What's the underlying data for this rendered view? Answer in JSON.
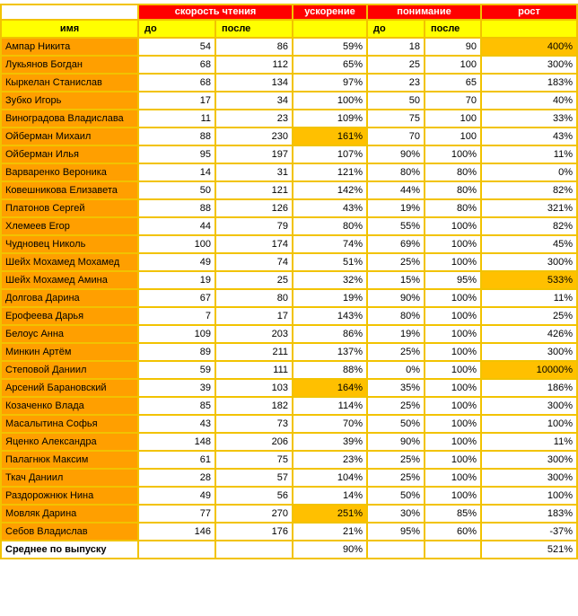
{
  "headers": {
    "reading_speed": "скорость чтения",
    "acceleration": "ускорение",
    "comprehension": "понимание",
    "growth": "рост",
    "name": "имя",
    "before": "до",
    "after": "после"
  },
  "rows": [
    {
      "name": "Ампар Никита",
      "speed_before": "54",
      "speed_after": "86",
      "acceleration": "59%",
      "comp_before": "18",
      "comp_after": "90",
      "growth": "400%",
      "hl_growth": true
    },
    {
      "name": "Лукьянов Богдан",
      "speed_before": "68",
      "speed_after": "112",
      "acceleration": "65%",
      "comp_before": "25",
      "comp_after": "100",
      "growth": "300%"
    },
    {
      "name": "Кыркелан Станислав",
      "speed_before": "68",
      "speed_after": "134",
      "acceleration": "97%",
      "comp_before": "23",
      "comp_after": "65",
      "growth": "183%"
    },
    {
      "name": "Зубко Игорь",
      "speed_before": "17",
      "speed_after": "34",
      "acceleration": "100%",
      "comp_before": "50",
      "comp_after": "70",
      "growth": "40%"
    },
    {
      "name": "Виноградова Владислава",
      "speed_before": "11",
      "speed_after": "23",
      "acceleration": "109%",
      "comp_before": "75",
      "comp_after": "100",
      "growth": "33%"
    },
    {
      "name": "Ойберман Михаил",
      "speed_before": "88",
      "speed_after": "230",
      "acceleration": "161%",
      "comp_before": "70",
      "comp_after": "100",
      "growth": "43%",
      "hl_accel": true
    },
    {
      "name": "Ойберман Илья",
      "speed_before": "95",
      "speed_after": "197",
      "acceleration": "107%",
      "comp_before": "90%",
      "comp_after": "100%",
      "growth": "11%"
    },
    {
      "name": "Варваренко Вероника",
      "speed_before": "14",
      "speed_after": "31",
      "acceleration": "121%",
      "comp_before": "80%",
      "comp_after": "80%",
      "growth": "0%"
    },
    {
      "name": "Ковешникова Елизавета",
      "speed_before": "50",
      "speed_after": "121",
      "acceleration": "142%",
      "comp_before": "44%",
      "comp_after": "80%",
      "growth": "82%"
    },
    {
      "name": "Платонов Сергей",
      "speed_before": "88",
      "speed_after": "126",
      "acceleration": "43%",
      "comp_before": "19%",
      "comp_after": "80%",
      "growth": "321%"
    },
    {
      "name": "Хлемеев Егор",
      "speed_before": "44",
      "speed_after": "79",
      "acceleration": "80%",
      "comp_before": "55%",
      "comp_after": "100%",
      "growth": "82%"
    },
    {
      "name": "Чудновец Николь",
      "speed_before": "100",
      "speed_after": "174",
      "acceleration": "74%",
      "comp_before": "69%",
      "comp_after": "100%",
      "growth": "45%"
    },
    {
      "name": "Шейх Мохамед Мохамед",
      "speed_before": "49",
      "speed_after": "74",
      "acceleration": "51%",
      "comp_before": "25%",
      "comp_after": "100%",
      "growth": "300%"
    },
    {
      "name": "Шейх Мохамед Амина",
      "speed_before": "19",
      "speed_after": "25",
      "acceleration": "32%",
      "comp_before": "15%",
      "comp_after": "95%",
      "growth": "533%",
      "hl_growth": true
    },
    {
      "name": "Долгова Дарина",
      "speed_before": "67",
      "speed_after": "80",
      "acceleration": "19%",
      "comp_before": "90%",
      "comp_after": "100%",
      "growth": "11%"
    },
    {
      "name": "Ерофеева Дарья",
      "speed_before": "7",
      "speed_after": "17",
      "acceleration": "143%",
      "comp_before": "80%",
      "comp_after": "100%",
      "growth": "25%"
    },
    {
      "name": "Белоус Анна",
      "speed_before": "109",
      "speed_after": "203",
      "acceleration": "86%",
      "comp_before": "19%",
      "comp_after": "100%",
      "growth": "426%"
    },
    {
      "name": "Минкин Артём",
      "speed_before": "89",
      "speed_after": "211",
      "acceleration": "137%",
      "comp_before": "25%",
      "comp_after": "100%",
      "growth": "300%"
    },
    {
      "name": "Степовой Даниил",
      "speed_before": "59",
      "speed_after": "111",
      "acceleration": "88%",
      "comp_before": "0%",
      "comp_after": "100%",
      "growth": "10000%",
      "hl_growth": true
    },
    {
      "name": "Арсений Барановский",
      "speed_before": "39",
      "speed_after": "103",
      "acceleration": "164%",
      "comp_before": "35%",
      "comp_after": "100%",
      "growth": "186%",
      "hl_accel": true
    },
    {
      "name": "Козаченко Влада",
      "speed_before": "85",
      "speed_after": "182",
      "acceleration": "114%",
      "comp_before": "25%",
      "comp_after": "100%",
      "growth": "300%"
    },
    {
      "name": "Масалытина Софья",
      "speed_before": "43",
      "speed_after": "73",
      "acceleration": "70%",
      "comp_before": "50%",
      "comp_after": "100%",
      "growth": "100%"
    },
    {
      "name": "Яценко Александра",
      "speed_before": "148",
      "speed_after": "206",
      "acceleration": "39%",
      "comp_before": "90%",
      "comp_after": "100%",
      "growth": "11%"
    },
    {
      "name": "Палагнюк Максим",
      "speed_before": "61",
      "speed_after": "75",
      "acceleration": "23%",
      "comp_before": "25%",
      "comp_after": "100%",
      "growth": "300%"
    },
    {
      "name": "Ткач Даниил",
      "speed_before": "28",
      "speed_after": "57",
      "acceleration": "104%",
      "comp_before": "25%",
      "comp_after": "100%",
      "growth": "300%"
    },
    {
      "name": "Раздорожнюк Нина",
      "speed_before": "49",
      "speed_after": "56",
      "acceleration": "14%",
      "comp_before": "50%",
      "comp_after": "100%",
      "growth": "100%"
    },
    {
      "name": "Мовляк Дарина",
      "speed_before": "77",
      "speed_after": "270",
      "acceleration": "251%",
      "comp_before": "30%",
      "comp_after": "85%",
      "growth": "183%",
      "hl_accel": true
    },
    {
      "name": "Себов Владислав",
      "speed_before": "146",
      "speed_after": "176",
      "acceleration": "21%",
      "comp_before": "95%",
      "comp_after": "60%",
      "growth": "-37%"
    }
  ],
  "footer": {
    "label": "Среднее по выпуску",
    "acceleration": "90%",
    "growth": "521%"
  },
  "colors": {
    "header_red": "#ff0000",
    "subheader_yellow": "#ffff00",
    "name_orange": "#ff9f00",
    "highlight": "#ffc000",
    "grid": "#f2c300"
  }
}
